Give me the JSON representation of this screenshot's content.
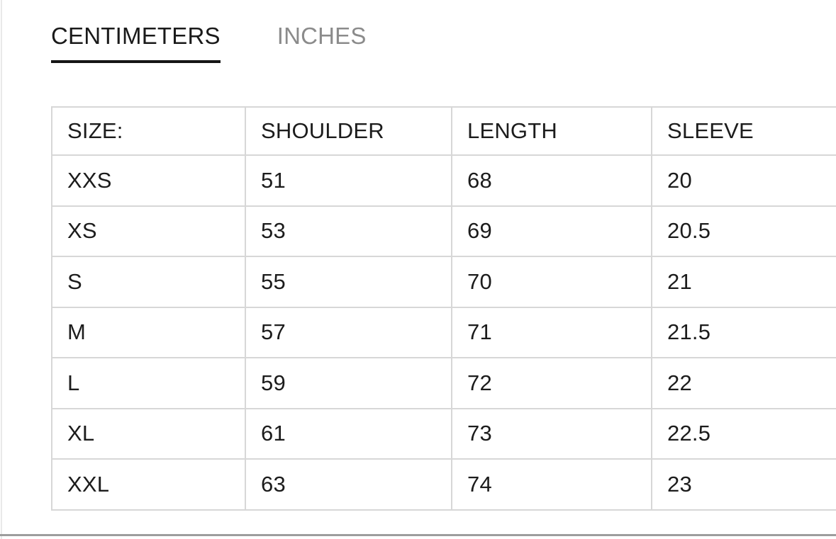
{
  "unit_tabs": {
    "active_tab": "CENTIMETERS",
    "centimeters_label": "CENTIMETERS",
    "inches_label": "INCHES"
  },
  "size_table": {
    "headers": {
      "size": "SIZE:",
      "shoulder": "SHOULDER",
      "length": "LENGTH",
      "sleeve": "SLEEVE"
    },
    "rows": [
      {
        "size": "XXS",
        "shoulder": "51",
        "length": "68",
        "sleeve": "20"
      },
      {
        "size": "XS",
        "shoulder": "53",
        "length": "69",
        "sleeve": "20.5"
      },
      {
        "size": "S",
        "shoulder": "55",
        "length": "70",
        "sleeve": "21"
      },
      {
        "size": "M",
        "shoulder": "57",
        "length": "71",
        "sleeve": "21.5"
      },
      {
        "size": "L",
        "shoulder": "59",
        "length": "72",
        "sleeve": "22"
      },
      {
        "size": "XL",
        "shoulder": "61",
        "length": "73",
        "sleeve": "22.5"
      },
      {
        "size": "XXL",
        "shoulder": "63",
        "length": "74",
        "sleeve": "23"
      }
    ]
  },
  "colors": {
    "text": "#1c1c1c",
    "inactive_tab_text": "#8b8b8b",
    "active_tab_underline": "#151515",
    "table_border": "#d7d7d7",
    "bottom_divider": "#9d9d9d",
    "left_hairline": "#e9e9e9",
    "background": "#ffffff"
  }
}
